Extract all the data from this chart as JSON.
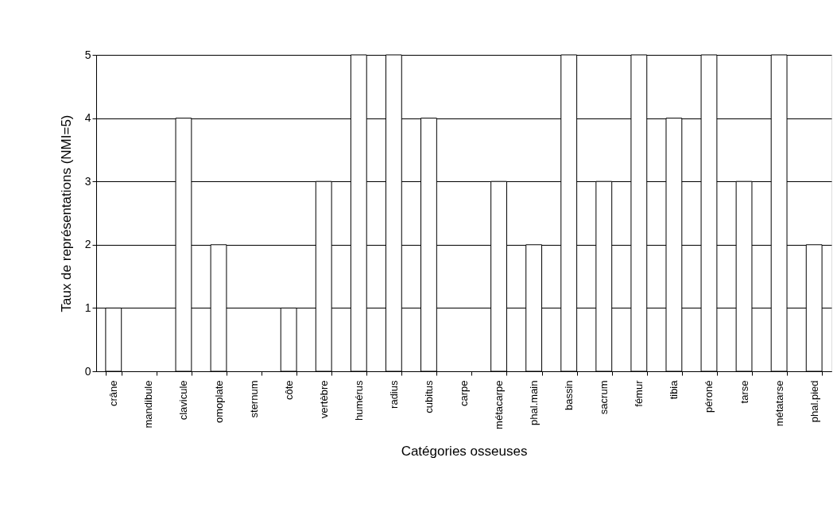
{
  "chart_data": {
    "type": "bar",
    "xlabel": "Catégories osseuses",
    "ylabel": "Taux de représentations (NMI=5)",
    "categories": [
      "crâne",
      "mandibule",
      "clavicule",
      "omoplate",
      "sternum",
      "côte",
      "vertèbre",
      "humérus",
      "radius",
      "cubitus",
      "carpe",
      "métacarpe",
      "phal.main",
      "bassin",
      "sacrum",
      "fémur",
      "tibia",
      "péroné",
      "tarse",
      "métatarse",
      "phal.pied"
    ],
    "values": [
      1,
      0,
      4,
      2,
      0,
      1,
      3,
      5,
      5,
      4,
      0,
      3,
      2,
      5,
      3,
      5,
      4,
      5,
      3,
      5,
      2
    ],
    "color": "#ffffff",
    "ylim": [
      0,
      5
    ],
    "yticks": [
      0,
      1,
      2,
      3,
      4,
      5
    ],
    "grid": "y"
  }
}
